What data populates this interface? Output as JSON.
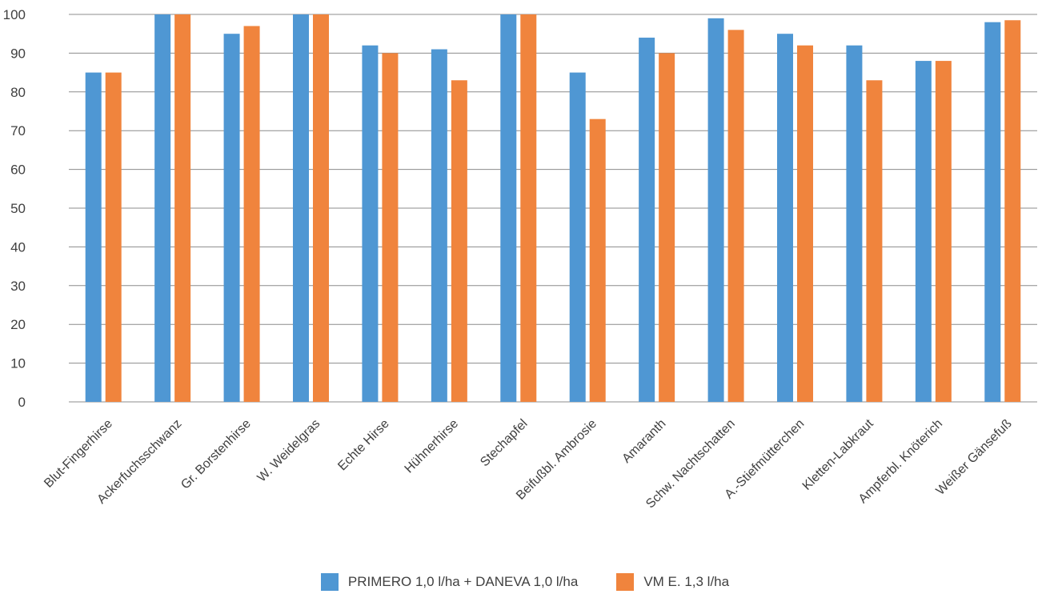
{
  "chart_data": {
    "type": "bar",
    "title": "",
    "xlabel": "",
    "ylabel": "",
    "ylim": [
      0,
      100
    ],
    "yticks": [
      0,
      10,
      20,
      30,
      40,
      50,
      60,
      70,
      80,
      90,
      100
    ],
    "grid": true,
    "legend_position": "bottom",
    "categories": [
      "Blut-Fingerhirse",
      "Ackerfuchsschwanz",
      "Gr. Borstenhirse",
      "W. Weidelgras",
      "Echte Hirse",
      "Hühnerhirse",
      "Stechapfel",
      "Beifußbl. Ambrosie",
      "Amaranth",
      "Schw. Nachtschatten",
      "A.-Stiefmütterchen",
      "Kletten-Labkraut",
      "Ampferbl. Knöterich",
      "Weißer Gänsefuß"
    ],
    "series": [
      {
        "name": "PRIMERO 1,0 l/ha + DANEVA 1,0 l/ha",
        "color": "#4f97d3",
        "values": [
          85,
          100,
          95,
          100,
          92,
          91,
          100,
          85,
          94,
          99,
          95,
          92,
          88,
          98
        ]
      },
      {
        "name": "VM E. 1,3 l/ha",
        "color": "#f0843d",
        "values": [
          85,
          100,
          97,
          100,
          90,
          83,
          100,
          73,
          90,
          96,
          92,
          83,
          88,
          98.5
        ]
      }
    ]
  }
}
